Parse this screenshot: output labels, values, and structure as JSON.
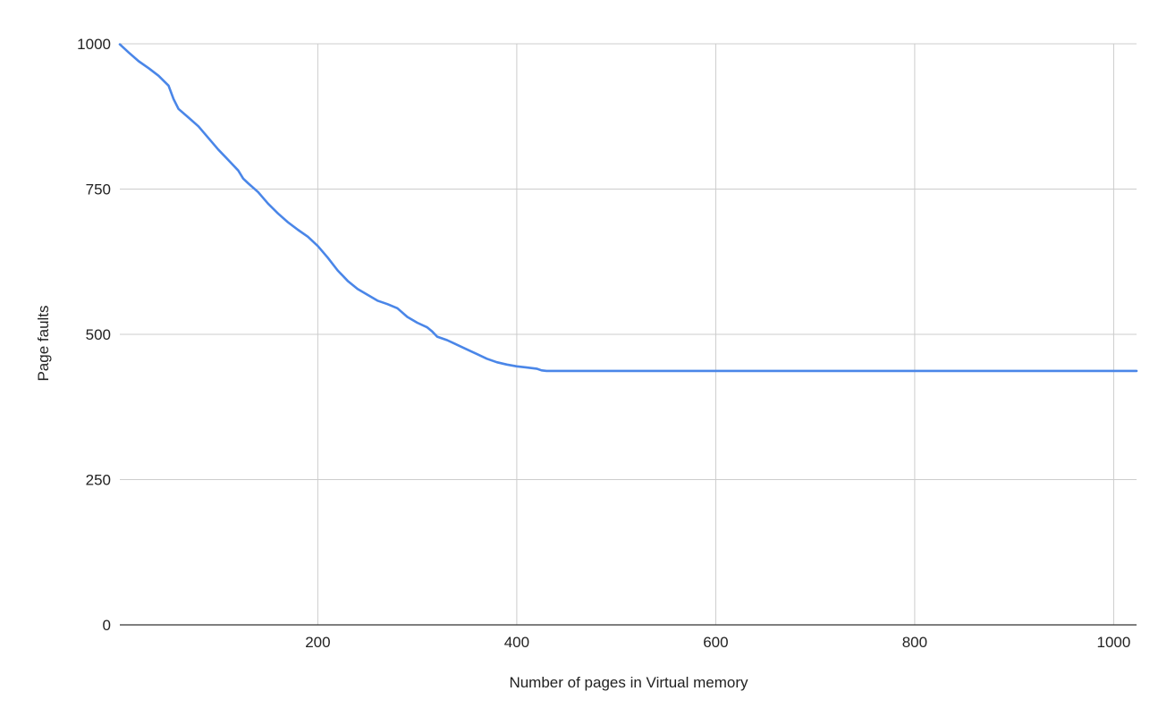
{
  "chart_data": {
    "type": "line",
    "title": "",
    "xlabel": "Number of pages in Virtual memory",
    "ylabel": "Page faults",
    "xlim": [
      1,
      1023
    ],
    "ylim": [
      0,
      1000
    ],
    "x_ticks": [
      200,
      400,
      600,
      800,
      1000
    ],
    "x_tick_labels": [
      "200",
      "400",
      "600",
      "800",
      "1000"
    ],
    "y_ticks": [
      0,
      250,
      500,
      750,
      1000
    ],
    "y_tick_labels": [
      "0",
      "250",
      "500",
      "750",
      "1000"
    ],
    "grid": true,
    "legend": "none",
    "series_color": "#4a86e8",
    "grid_color": "#cccccc",
    "axis_color": "#333333",
    "series": [
      {
        "x": [
          1,
          10,
          20,
          30,
          40,
          50,
          55,
          60,
          70,
          80,
          90,
          100,
          110,
          120,
          125,
          130,
          140,
          150,
          160,
          170,
          180,
          190,
          200,
          210,
          220,
          230,
          240,
          250,
          260,
          270,
          280,
          290,
          300,
          310,
          315,
          320,
          330,
          340,
          350,
          360,
          370,
          380,
          390,
          400,
          410,
          420,
          425,
          430,
          440,
          500,
          600,
          700,
          800,
          900,
          1000,
          1023
        ],
        "y": [
          999,
          985,
          970,
          958,
          945,
          928,
          905,
          888,
          873,
          858,
          838,
          818,
          800,
          782,
          768,
          760,
          745,
          725,
          708,
          693,
          680,
          668,
          652,
          632,
          610,
          592,
          578,
          568,
          558,
          552,
          545,
          530,
          520,
          512,
          505,
          496,
          490,
          482,
          474,
          466,
          458,
          452,
          448,
          445,
          443,
          441,
          438,
          437,
          437,
          437,
          437,
          437,
          437,
          437,
          437,
          437
        ]
      }
    ]
  }
}
